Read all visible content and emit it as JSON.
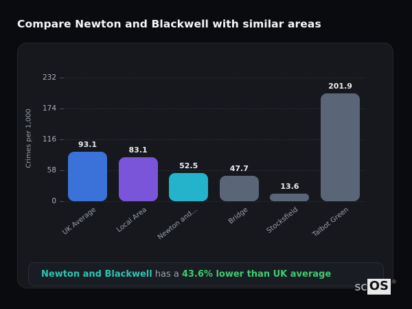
{
  "page": {
    "title": "Compare Newton and Blackwell with similar areas"
  },
  "chart_data": {
    "type": "bar",
    "categories": [
      "UK Average",
      "Local Area",
      "Newton and...",
      "Bridge",
      "Stocksfield",
      "Talbot Green"
    ],
    "values": [
      93.1,
      83.1,
      52.5,
      47.7,
      13.6,
      201.9
    ],
    "value_labels": [
      "93.1",
      "83.1",
      "52.5",
      "47.7",
      "13.6",
      "201.9"
    ],
    "bar_colors": [
      "#3b72d9",
      "#7a55d9",
      "#23b4cc",
      "#5a6578",
      "#5a6578",
      "#5a6578"
    ],
    "title": "",
    "xlabel": "",
    "ylabel": "Crimes per 1,000",
    "yticks": [
      0,
      58,
      116,
      174,
      232
    ],
    "ylim": [
      0,
      232
    ],
    "grid": "dashed-horizontal",
    "legend": "none"
  },
  "note": {
    "highlight_area": "Newton and Blackwell",
    "middle": "has a",
    "highlight_stat": "43.6% lower than UK average"
  },
  "logo": {
    "prefix": "sc",
    "suffix": "OS",
    "registered": "®"
  },
  "colors": {
    "page_background": "#0a0b0e",
    "card_background": "#16181d",
    "note_background": "#191c22",
    "title_text": "#f5f6f8",
    "axis_text": "#9aa0a8",
    "value_label_text": "#e9ebef",
    "note_area_text": "#2cc5b1",
    "note_stat_text": "#3dcd70"
  }
}
